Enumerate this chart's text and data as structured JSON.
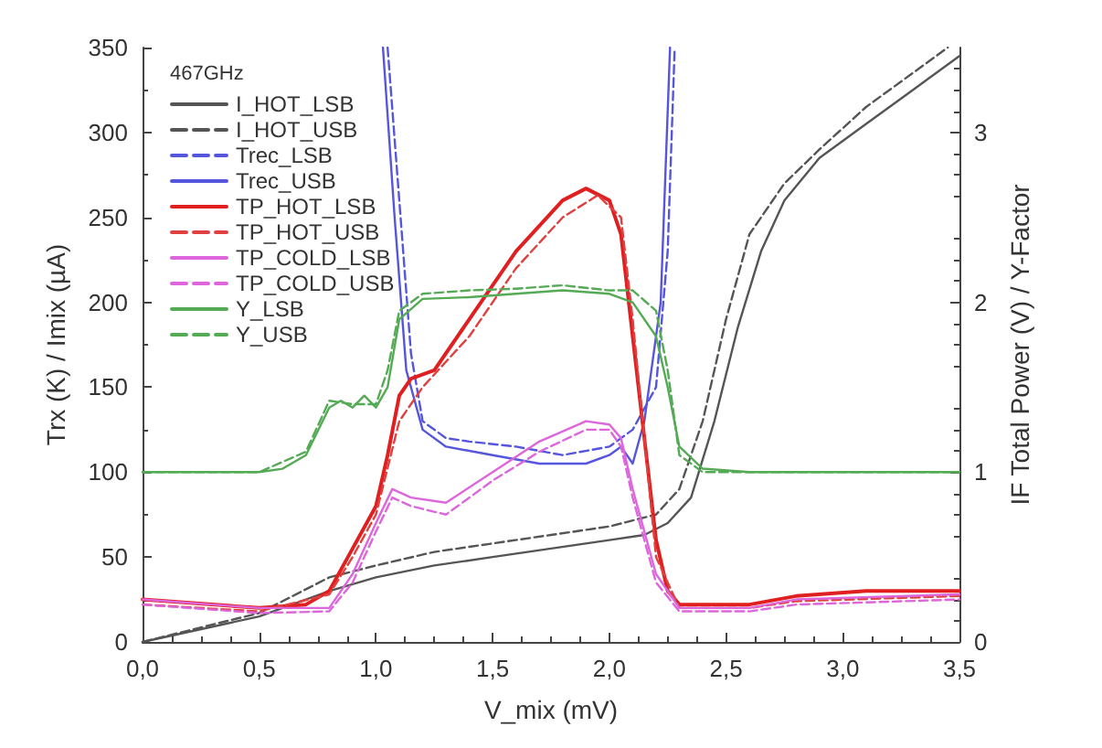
{
  "chart_data": {
    "type": "line",
    "legend_title": "467GHz",
    "xlabel": "V_mix (mV)",
    "ylabel": "Trx (K) / Imix (µA)",
    "y2label": "IF Total Power (V) / Y-Factor",
    "xlim": [
      0,
      3.5
    ],
    "xticks": [
      {
        "value": 0,
        "label": "0,0"
      },
      {
        "value": 0.5,
        "label": "0,5"
      },
      {
        "value": 1,
        "label": "1,0"
      },
      {
        "value": 1.5,
        "label": "1,5"
      },
      {
        "value": 2,
        "label": "2,0"
      },
      {
        "value": 2.5,
        "label": "2,5"
      },
      {
        "value": 3,
        "label": "3,0"
      },
      {
        "value": 3.5,
        "label": "3,5"
      }
    ],
    "ylim": [
      0,
      350
    ],
    "yticks": [
      0,
      50,
      100,
      150,
      200,
      250,
      300,
      350
    ],
    "y2lim": [
      0,
      3.5
    ],
    "y2ticks": [
      0,
      1,
      2,
      3
    ],
    "grid": false,
    "legend": "top left",
    "marker": "none",
    "series": [
      {
        "name": "I_HOT_LSB",
        "color": "#555555",
        "line_style": "solid",
        "x": [
          0,
          0.5,
          0.8,
          1.0,
          1.25,
          1.5,
          1.75,
          2.0,
          2.15,
          2.25,
          2.35,
          2.45,
          2.55,
          2.65,
          2.75,
          2.9,
          3.1,
          3.3,
          3.5
        ],
        "values": [
          0,
          15,
          30,
          38,
          45,
          50,
          55,
          60,
          63,
          70,
          85,
          130,
          185,
          230,
          260,
          285,
          305,
          325,
          345
        ]
      },
      {
        "name": "I_HOT_USB",
        "color": "#555555",
        "line_style": "dashed",
        "x": [
          0,
          0.5,
          0.8,
          1.0,
          1.25,
          1.5,
          1.75,
          2.0,
          2.2,
          2.3,
          2.4,
          2.5,
          2.6,
          2.75,
          2.9,
          3.1,
          3.3,
          3.45
        ],
        "values": [
          0,
          17,
          38,
          45,
          53,
          58,
          63,
          68,
          75,
          90,
          130,
          190,
          240,
          270,
          290,
          315,
          335,
          350
        ]
      },
      {
        "name": "Trec_LSB",
        "color": "#5555dd",
        "line_style": "dashed",
        "x": [
          1.05,
          1.1,
          1.15,
          1.2,
          1.3,
          1.4,
          1.6,
          1.8,
          2.0,
          2.1,
          2.2,
          2.25,
          2.28
        ],
        "values": [
          350,
          260,
          170,
          130,
          120,
          118,
          115,
          110,
          115,
          125,
          150,
          230,
          350
        ]
      },
      {
        "name": "Trec_USB",
        "color": "#5555dd",
        "line_style": "solid",
        "x": [
          1.03,
          1.08,
          1.13,
          1.2,
          1.3,
          1.5,
          1.7,
          1.9,
          2.0,
          2.05,
          2.1,
          2.15,
          2.22,
          2.26
        ],
        "values": [
          350,
          250,
          160,
          125,
          115,
          110,
          105,
          105,
          110,
          115,
          105,
          130,
          200,
          350
        ]
      },
      {
        "name": "TP_HOT_LSB",
        "color": "#e02020",
        "line_style": "solid",
        "axis": "y2",
        "x": [
          0,
          0.5,
          0.7,
          0.8,
          0.9,
          1.0,
          1.05,
          1.1,
          1.15,
          1.25,
          1.4,
          1.6,
          1.8,
          1.9,
          2.0,
          2.05,
          2.1,
          2.15,
          2.2,
          2.25,
          2.3,
          2.6,
          2.8,
          3.1,
          3.5
        ],
        "values": [
          0.25,
          0.2,
          0.22,
          0.3,
          0.55,
          0.8,
          1.1,
          1.45,
          1.55,
          1.6,
          1.9,
          2.3,
          2.6,
          2.67,
          2.6,
          2.4,
          1.8,
          1.2,
          0.6,
          0.3,
          0.22,
          0.22,
          0.27,
          0.3,
          0.3
        ]
      },
      {
        "name": "TP_HOT_USB",
        "color": "#e04040",
        "line_style": "dashed",
        "axis": "y2",
        "x": [
          0,
          0.5,
          0.8,
          0.9,
          1.0,
          1.1,
          1.2,
          1.4,
          1.6,
          1.8,
          1.95,
          2.05,
          2.1,
          2.15,
          2.2,
          2.3,
          2.6,
          2.8,
          3.5
        ],
        "values": [
          0.22,
          0.18,
          0.28,
          0.5,
          0.75,
          1.3,
          1.5,
          1.8,
          2.2,
          2.5,
          2.63,
          2.5,
          1.9,
          1.2,
          0.5,
          0.2,
          0.2,
          0.24,
          0.27
        ]
      },
      {
        "name": "TP_COLD_LSB",
        "color": "#dd66dd",
        "line_style": "solid",
        "axis": "y2",
        "x": [
          0,
          0.5,
          0.8,
          0.9,
          1.0,
          1.07,
          1.15,
          1.3,
          1.5,
          1.7,
          1.9,
          2.0,
          2.05,
          2.1,
          2.2,
          2.3,
          2.6,
          2.8,
          3.5
        ],
        "values": [
          0.25,
          0.2,
          0.2,
          0.4,
          0.7,
          0.9,
          0.85,
          0.82,
          1.0,
          1.18,
          1.3,
          1.28,
          1.2,
          0.9,
          0.4,
          0.2,
          0.2,
          0.25,
          0.28
        ]
      },
      {
        "name": "TP_COLD_USB",
        "color": "#dd66dd",
        "line_style": "dashed",
        "axis": "y2",
        "x": [
          0,
          0.5,
          0.8,
          0.9,
          1.0,
          1.07,
          1.15,
          1.3,
          1.5,
          1.7,
          1.9,
          2.0,
          2.05,
          2.1,
          2.2,
          2.3,
          2.6,
          2.8,
          3.5
        ],
        "values": [
          0.22,
          0.17,
          0.18,
          0.35,
          0.65,
          0.85,
          0.8,
          0.75,
          0.95,
          1.12,
          1.25,
          1.25,
          1.15,
          0.85,
          0.35,
          0.18,
          0.18,
          0.22,
          0.25
        ]
      },
      {
        "name": "Y_LSB",
        "color": "#55aa55",
        "line_style": "solid",
        "axis": "y2",
        "x": [
          0,
          0.5,
          0.6,
          0.7,
          0.8,
          0.85,
          0.9,
          0.95,
          1.0,
          1.05,
          1.1,
          1.2,
          1.4,
          1.6,
          1.8,
          2.0,
          2.1,
          2.2,
          2.25,
          2.3,
          2.4,
          2.6,
          3.0,
          3.5
        ],
        "values": [
          1.0,
          1.0,
          1.02,
          1.1,
          1.38,
          1.42,
          1.38,
          1.45,
          1.38,
          1.5,
          1.9,
          2.02,
          2.03,
          2.05,
          2.07,
          2.05,
          2.0,
          1.8,
          1.5,
          1.15,
          1.02,
          1.0,
          1.0,
          1.0
        ]
      },
      {
        "name": "Y_USB",
        "color": "#55aa55",
        "line_style": "dashed",
        "axis": "y2",
        "x": [
          0,
          0.5,
          0.7,
          0.8,
          0.9,
          1.0,
          1.05,
          1.1,
          1.2,
          1.4,
          1.6,
          1.8,
          2.0,
          2.1,
          2.2,
          2.25,
          2.3,
          2.4,
          3.5
        ],
        "values": [
          1.0,
          1.0,
          1.12,
          1.42,
          1.4,
          1.4,
          1.6,
          1.95,
          2.05,
          2.07,
          2.08,
          2.1,
          2.07,
          2.07,
          1.95,
          1.6,
          1.1,
          1.0,
          1.0
        ]
      }
    ]
  }
}
